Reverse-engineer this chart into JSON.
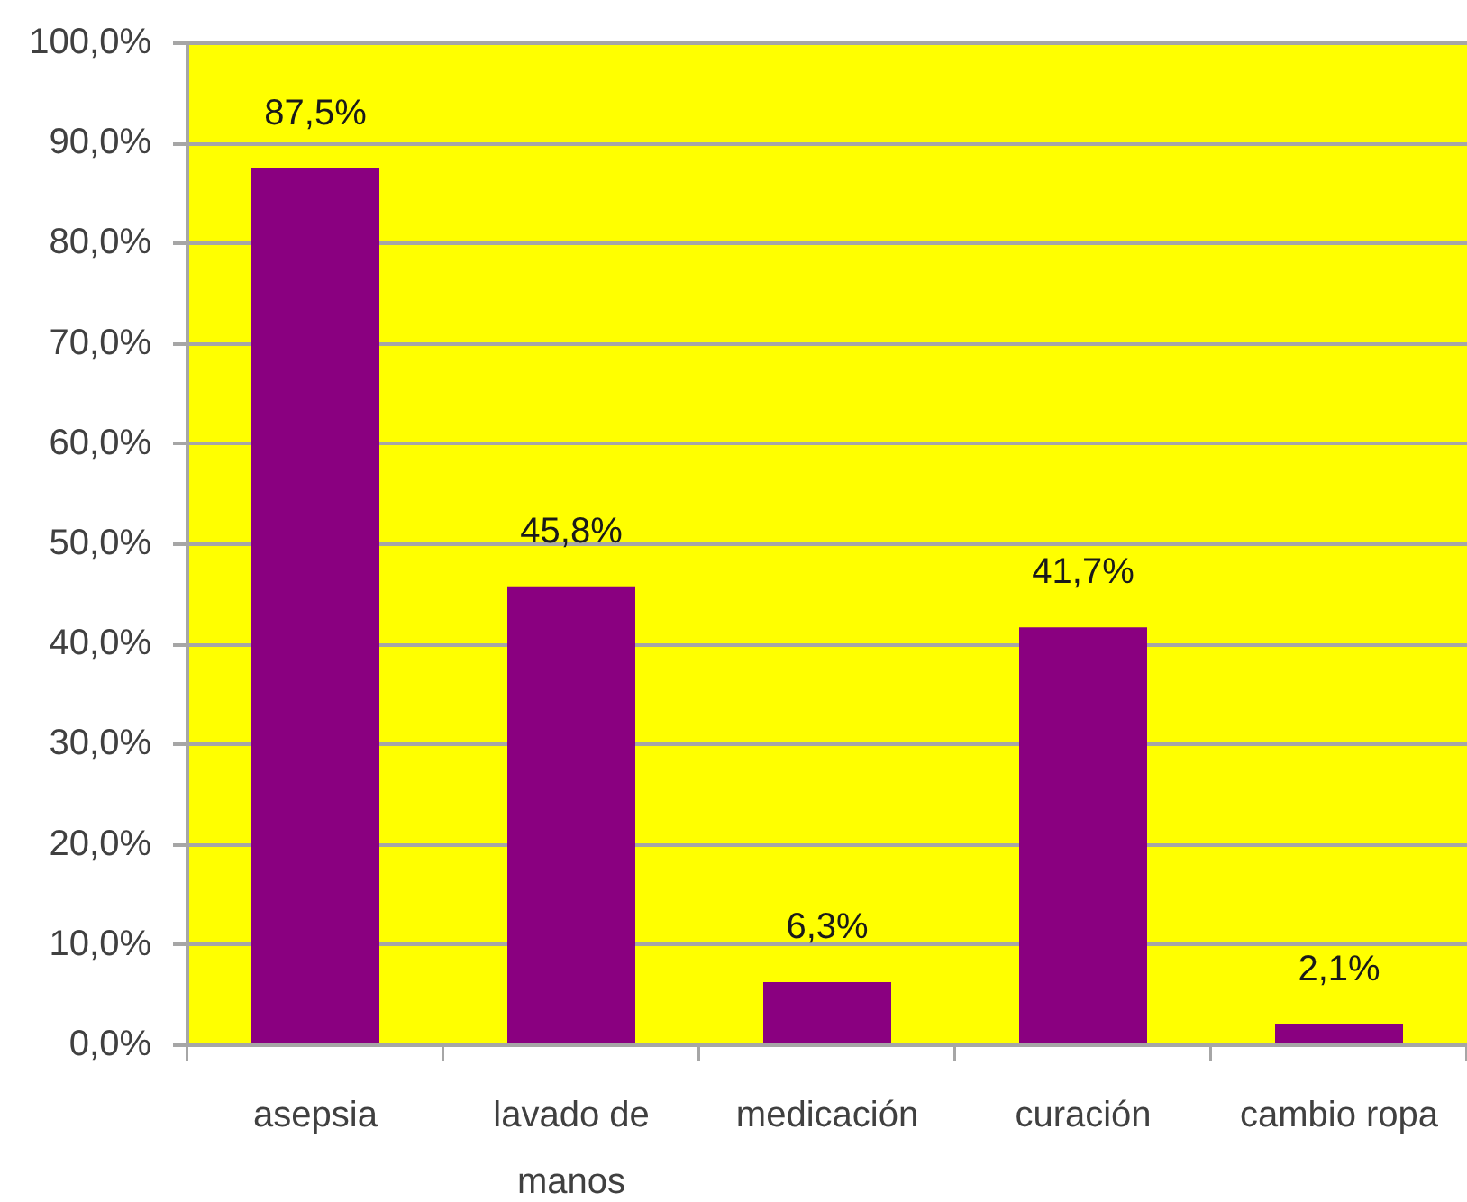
{
  "chart_data": {
    "type": "bar",
    "categories": [
      "asepsia",
      "lavado de manos",
      "medicación",
      "curación",
      "cambio ropa"
    ],
    "values": [
      87.5,
      45.8,
      6.3,
      41.7,
      2.1
    ],
    "value_labels": [
      "87,5%",
      "45,8%",
      "6,3%",
      "41,7%",
      "2,1%"
    ],
    "color": "#8a0080",
    "ylim": [
      0,
      100
    ],
    "yticks": [
      {
        "value": 0,
        "label": "0,0%"
      },
      {
        "value": 10,
        "label": "10,0%"
      },
      {
        "value": 20,
        "label": "20,0%"
      },
      {
        "value": 30,
        "label": "30,0%"
      },
      {
        "value": 40,
        "label": "40,0%"
      },
      {
        "value": 50,
        "label": "50,0%"
      },
      {
        "value": 60,
        "label": "60,0%"
      },
      {
        "value": 70,
        "label": "70,0%"
      },
      {
        "value": 80,
        "label": "80,0%"
      },
      {
        "value": 90,
        "label": "90,0%"
      },
      {
        "value": 100,
        "label": "100,0%"
      }
    ],
    "grid": "y"
  }
}
